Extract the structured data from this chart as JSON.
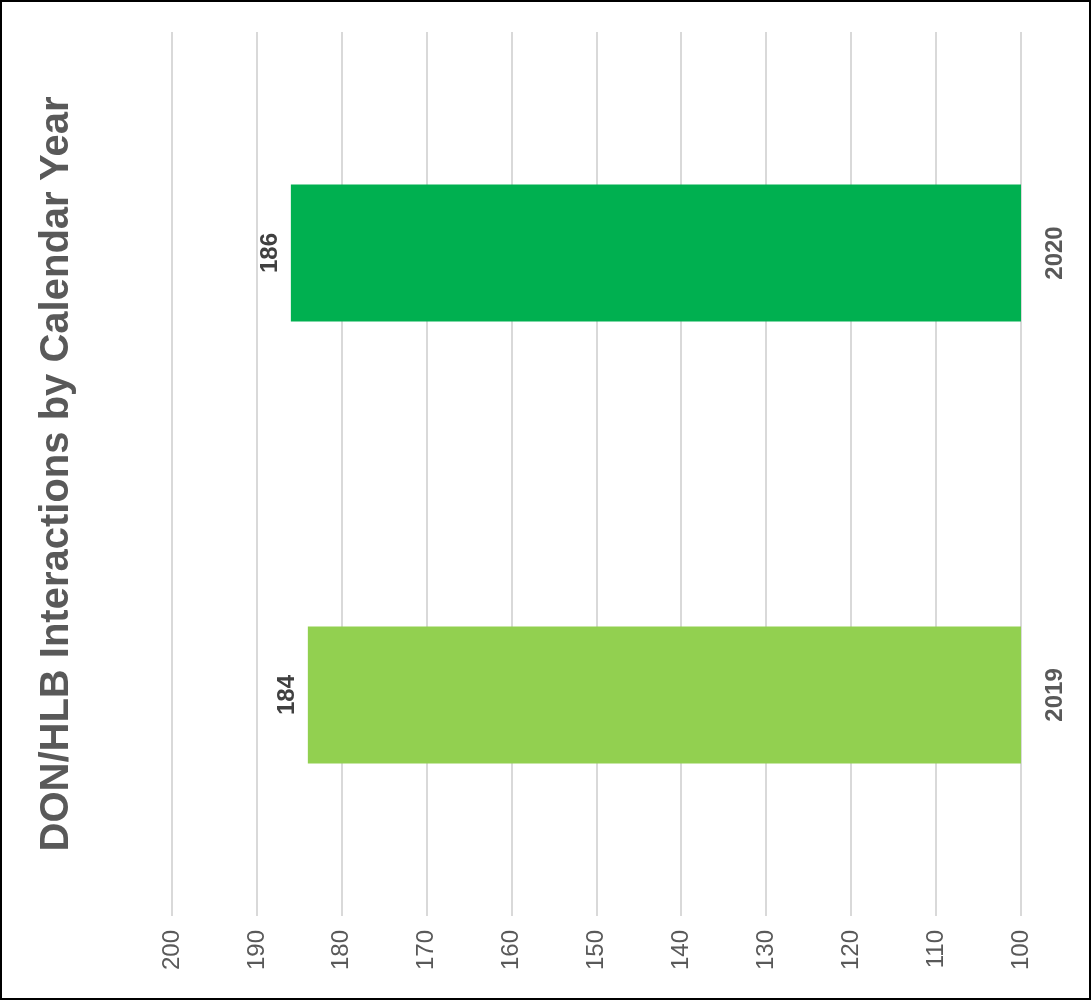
{
  "chart_data": {
    "type": "bar",
    "orientation": "horizontal",
    "title": "DON/HLB Interactions by Calendar Year",
    "categories": [
      "2020",
      "2019"
    ],
    "series": [
      {
        "values": [
          186,
          184
        ],
        "colors": [
          "#00b050",
          "#92d050"
        ]
      }
    ],
    "xlim": [
      200,
      100
    ],
    "xticks": [
      200,
      190,
      180,
      170,
      160,
      150,
      140,
      130,
      120,
      110,
      100
    ],
    "grid": "x",
    "data_labels": true,
    "legend": false
  }
}
